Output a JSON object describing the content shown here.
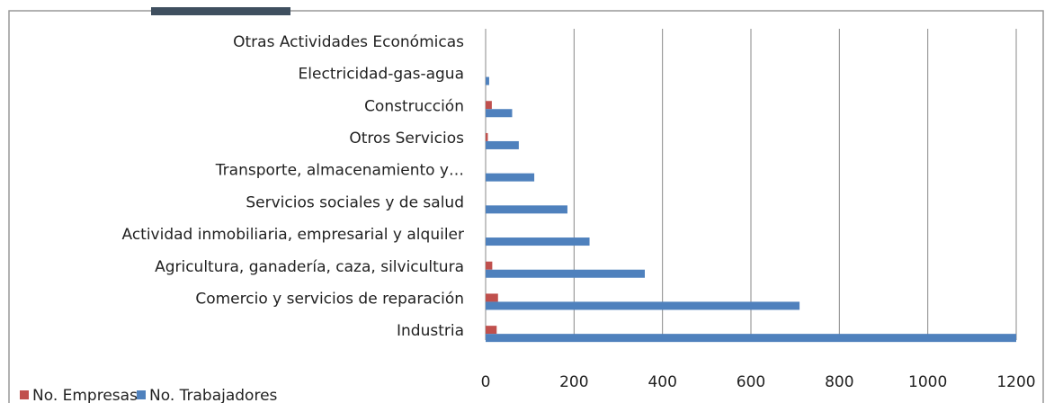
{
  "chart_data": {
    "type": "hbar",
    "categories": [
      "Otras Actividades Económicas",
      "Electricidad-gas-agua",
      "Construcción",
      "Otros Servicios",
      "Transporte, almacenamiento y…",
      "Servicios sociales y de salud",
      "Actividad inmobiliaria, empresarial y alquiler",
      "Agricultura, ganadería, caza, silvicultura",
      "Comercio y servicios de reparación",
      "Industria"
    ],
    "series": [
      {
        "name": "No. Empresas",
        "color": "#c0504d",
        "values": [
          0,
          0,
          14,
          5,
          0,
          0,
          0,
          15,
          28,
          25
        ]
      },
      {
        "name": "No. Trabajadores",
        "color": "#4f81bd",
        "values": [
          0,
          8,
          60,
          75,
          110,
          185,
          235,
          360,
          710,
          1200
        ]
      }
    ],
    "xlim": [
      0,
      1200
    ],
    "xticks": [
      0,
      200,
      400,
      600,
      800,
      1000,
      1200
    ],
    "grid": true,
    "legend": "bottom-left"
  }
}
